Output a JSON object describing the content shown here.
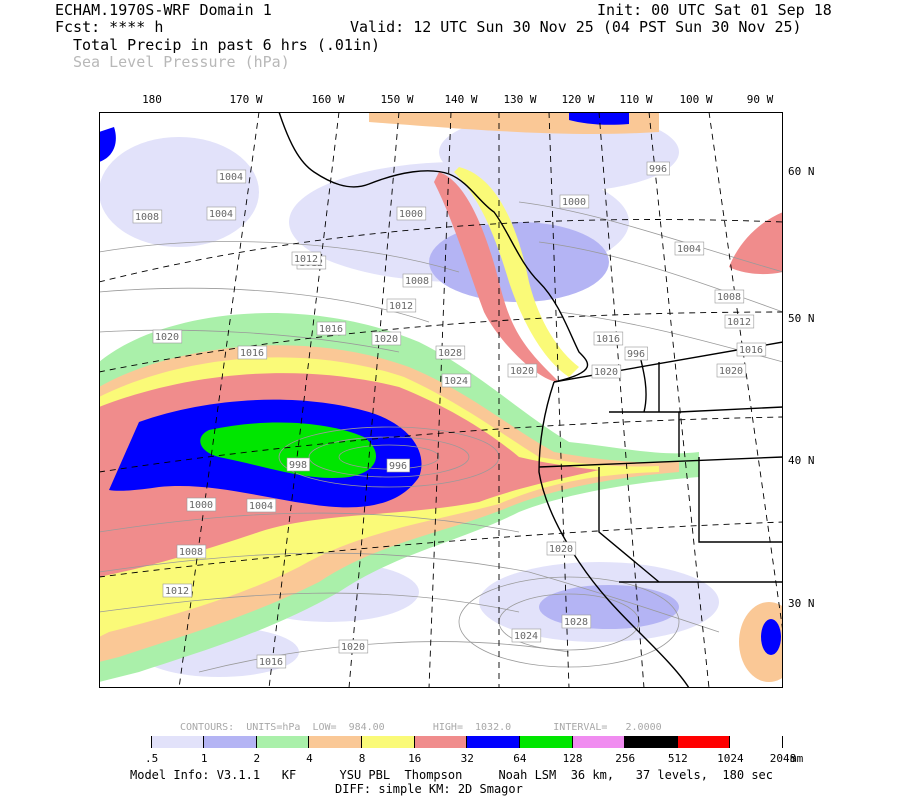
{
  "header": {
    "model_title": "ECHAM.1970S-WRF Domain 1",
    "init": "Init: 00 UTC Sat 01 Sep 18",
    "fcst": "Fcst: **** h",
    "valid": "Valid: 12 UTC Sun 30 Nov 25 (04 PST Sun 30 Nov 25)",
    "field1": "Total Precip in past 6 hrs (.01in)",
    "field2": "Sea Level Pressure (hPa)"
  },
  "longitude_labels": [
    "180",
    "170 W",
    "160 W",
    "150 W",
    "140 W",
    "130 W",
    "120 W",
    "110 W",
    "100 W",
    "90 W"
  ],
  "latitude_labels": [
    "60 N",
    "50 N",
    "40 N",
    "30 N"
  ],
  "pressure_labels": [
    "1004",
    "1008",
    "1012",
    "1000",
    "1016",
    "1020",
    "1008",
    "1012",
    "1016",
    "1020",
    "1024",
    "1028",
    "1020",
    "996",
    "998",
    "1000",
    "1004",
    "1008",
    "1012",
    "1016",
    "1020",
    "1024",
    "1028",
    "1020",
    "1016",
    "1020",
    "996",
    "996",
    "1000",
    "1004",
    "1008",
    "1012",
    "1016",
    "1020",
    "1004",
    "1012"
  ],
  "legend": {
    "labels": [
      ".5",
      "1",
      "2",
      "4",
      "8",
      "16",
      "32",
      "64",
      "128",
      "256",
      "512",
      "1024",
      "2048"
    ],
    "unit": "mm",
    "colors": [
      "#ffffff",
      "#e2e2fa",
      "#b4b4f4",
      "#aaf0aa",
      "#fac896",
      "#fafa78",
      "#f08c8c",
      "#0000ff",
      "#00e600",
      "#f08cf0",
      "#000000",
      "#ff0000",
      "#ffffff"
    ]
  },
  "contour_info": "CONTOURS:  UNITS=hPa  LOW=  984.00        HIGH=  1032.0       INTERVAL=   2.0000",
  "footer": {
    "model_info": "Model Info: V3.1.1   KF      YSU PBL  Thompson     Noah LSM  36 km,   37 levels,  180 sec",
    "diff": "DIFF: simple KM: 2D Smagor"
  }
}
